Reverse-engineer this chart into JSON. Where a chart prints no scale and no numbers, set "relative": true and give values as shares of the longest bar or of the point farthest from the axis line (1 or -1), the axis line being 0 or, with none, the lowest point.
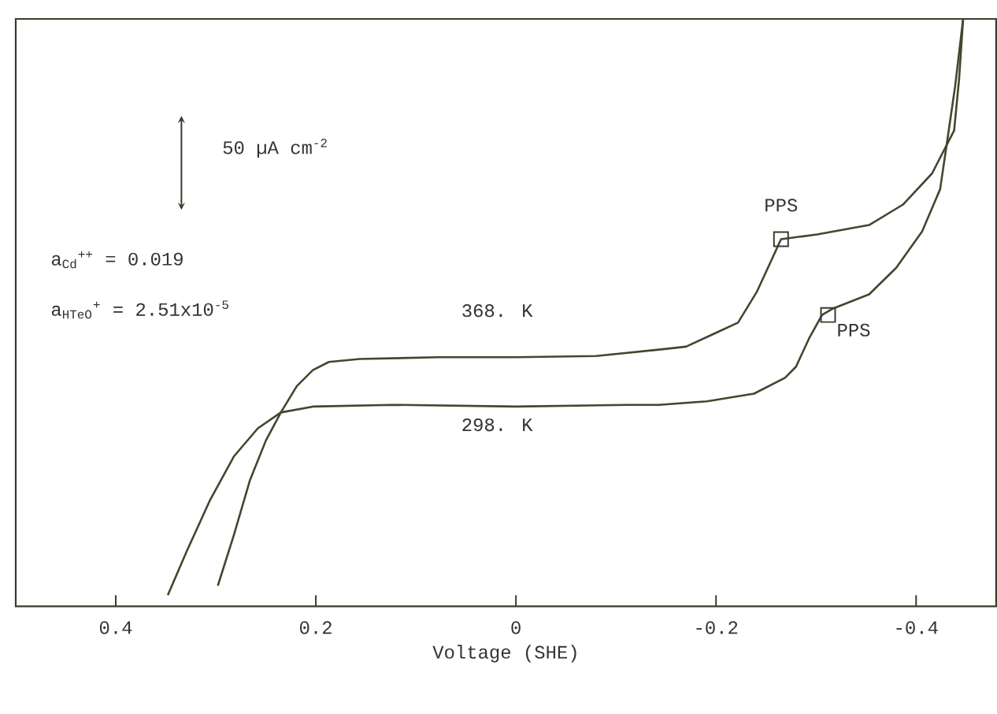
{
  "chart_data": {
    "type": "line",
    "relative": true,
    "xlabel": "Voltage (SHE)",
    "xlim": [
      0.5,
      -0.48
    ],
    "xticks": [
      0.4,
      0.2,
      0,
      -0.2,
      -0.4
    ],
    "series": [
      {
        "name": "368. K",
        "color": "#45452f",
        "x": [
          0.298,
          0.282,
          0.266,
          0.25,
          0.235,
          0.219,
          0.203,
          0.187,
          0.156,
          0.077,
          0.0,
          -0.08,
          -0.143,
          -0.17,
          -0.198,
          -0.222,
          -0.241,
          -0.254,
          -0.265,
          -0.301,
          -0.353,
          -0.387,
          -0.416,
          -0.438,
          -0.443,
          -0.447
        ],
        "values": [
          0.035,
          0.121,
          0.214,
          0.282,
          0.33,
          0.375,
          0.402,
          0.416,
          0.421,
          0.424,
          0.424,
          0.426,
          0.437,
          0.442,
          0.464,
          0.483,
          0.536,
          0.584,
          0.625,
          0.633,
          0.649,
          0.684,
          0.737,
          0.81,
          0.898,
          1
        ]
      },
      {
        "name": "298. K",
        "color": "#45452f",
        "x": [
          0.348,
          0.329,
          0.306,
          0.282,
          0.258,
          0.235,
          0.203,
          0.124,
          0.0,
          -0.112,
          -0.143,
          -0.191,
          -0.238,
          -0.269,
          -0.28,
          -0.293,
          -0.306,
          -0.317,
          -0.353,
          -0.38,
          -0.406,
          -0.424,
          -0.431,
          -0.439,
          -0.447
        ],
        "values": [
          0.019,
          0.094,
          0.18,
          0.255,
          0.303,
          0.33,
          0.34,
          0.343,
          0.34,
          0.343,
          0.343,
          0.349,
          0.362,
          0.389,
          0.408,
          0.456,
          0.496,
          0.507,
          0.531,
          0.576,
          0.638,
          0.71,
          0.791,
          0.885,
          1
        ]
      }
    ],
    "annotations": [
      "50 µA cm$^{-2}$",
      "a$_{Cd}$$^{++}$  = 0.019",
      "a$_{HTeO}$$^{+}$ = 2.51x10$^{-5}$",
      {
        "text": "PPS",
        "x": -0.265,
        "y": 0.625
      },
      {
        "text": "PPS",
        "x": -0.312,
        "y": 0.496
      }
    ]
  }
}
